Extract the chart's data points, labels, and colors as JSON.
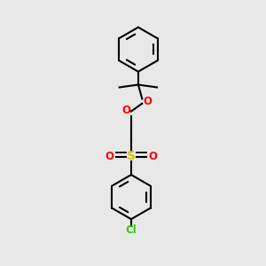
{
  "bg_color": "#e8e8e8",
  "line_color": "#000000",
  "O_color": "#ff0000",
  "S_color": "#cccc00",
  "Cl_color": "#33cc00",
  "line_width": 1.5,
  "font_size": 8.5,
  "figsize": [
    3.0,
    3.0
  ],
  "dpi": 100,
  "xlim": [
    0,
    10
  ],
  "ylim": [
    0,
    10
  ]
}
